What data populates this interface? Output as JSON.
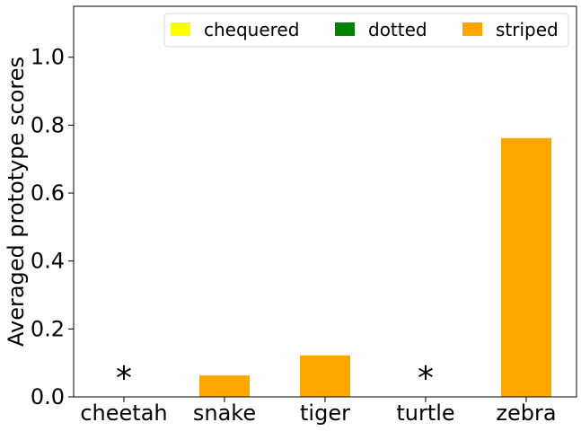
{
  "chart_data": {
    "type": "bar",
    "categories": [
      "cheetah",
      "snake",
      "tiger",
      "turtle",
      "zebra"
    ],
    "series": [
      {
        "name": "chequered",
        "color": "#ffff00",
        "values": [
          0,
          0,
          0,
          0,
          0
        ]
      },
      {
        "name": "dotted",
        "color": "#008000",
        "values": [
          0,
          0,
          0,
          0,
          0
        ]
      },
      {
        "name": "striped",
        "color": "#ffa500",
        "values": [
          0,
          0.063,
          0.122,
          0,
          0.762
        ]
      }
    ],
    "annotations": [
      {
        "text": "*",
        "category": "cheetah"
      },
      {
        "text": "*",
        "category": "turtle"
      }
    ],
    "ylabel": "Averaged prototype scores",
    "xlabel": "",
    "ylim": [
      0,
      1.15
    ],
    "yticks": [
      "0.0",
      "0.2",
      "0.4",
      "0.6",
      "0.8",
      "1.0"
    ],
    "grid": false,
    "legend_position": "top-right",
    "legend_columns": 3
  }
}
